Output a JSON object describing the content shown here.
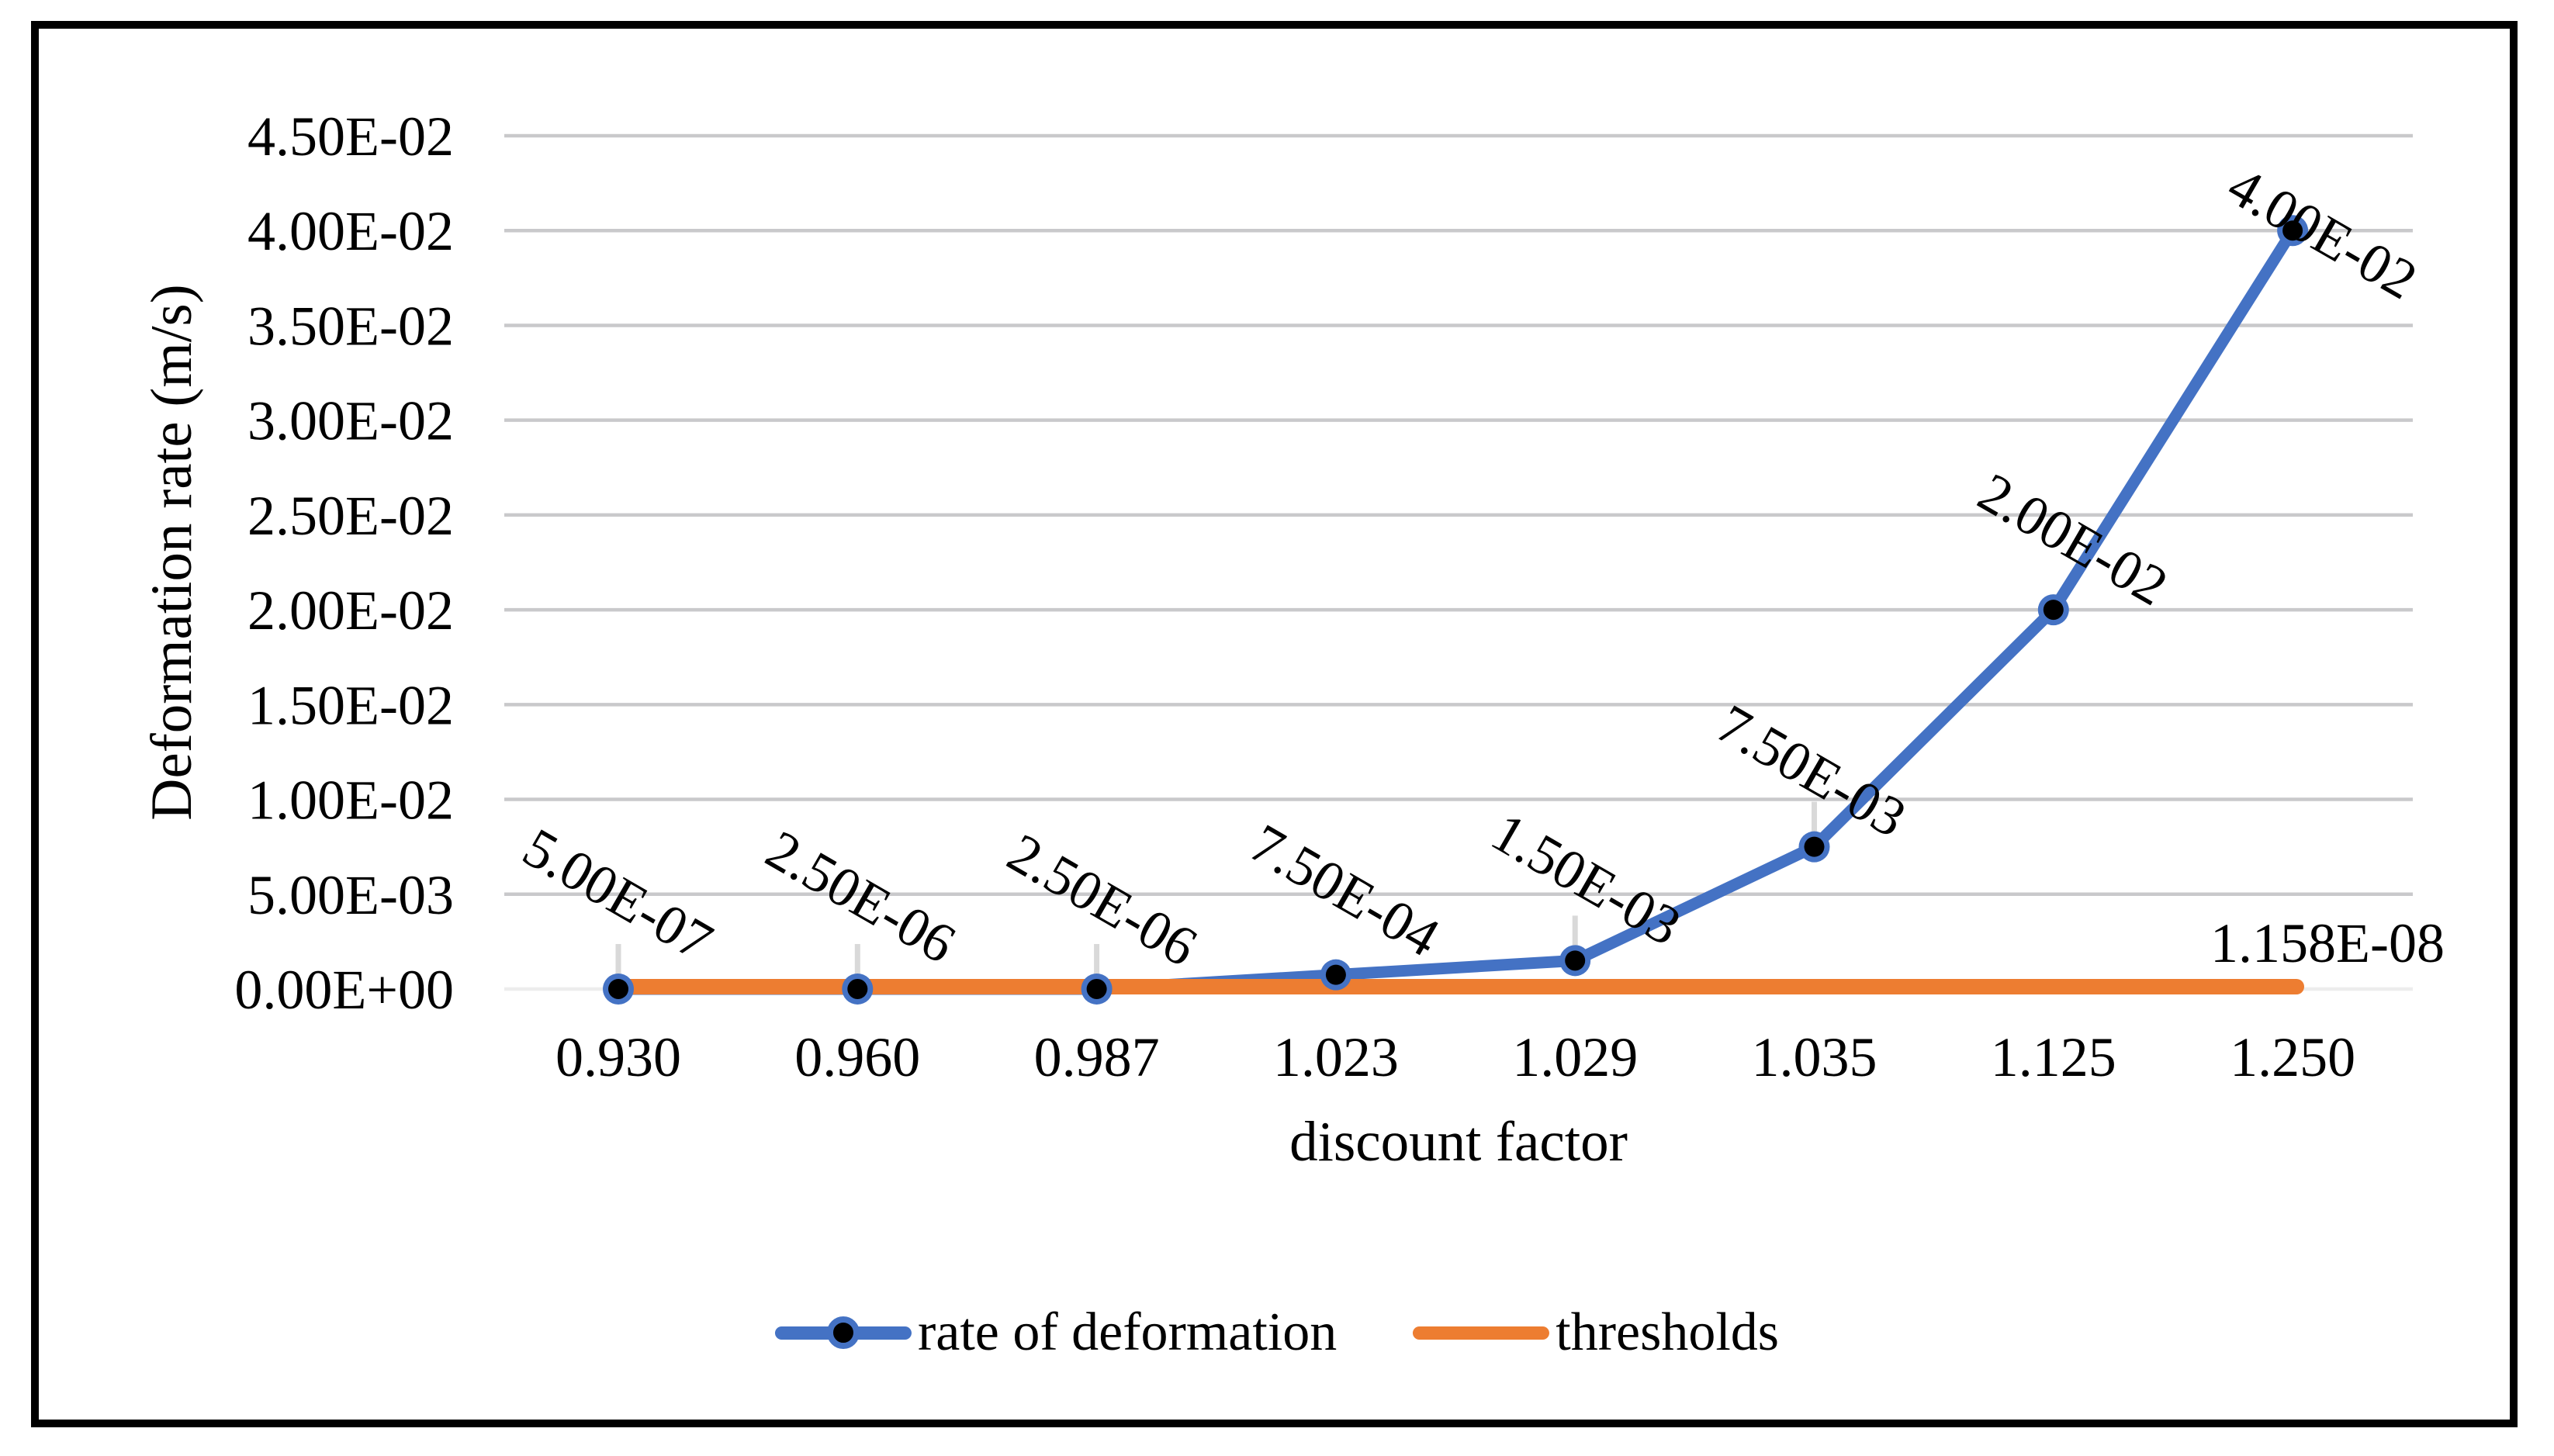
{
  "chart_data": {
    "type": "line",
    "title": "",
    "xlabel": "discount factor",
    "ylabel": "Deformation rate (m/s)",
    "categories": [
      "0.930",
      "0.960",
      "0.987",
      "1.023",
      "1.029",
      "1.035",
      "1.125",
      "1.250"
    ],
    "series": [
      {
        "name": "rate of deformation",
        "type": "line",
        "color": "#4472C4",
        "marker": "black-circle-with-blue-ring",
        "values": [
          5e-07,
          2.5e-06,
          2.5e-06,
          0.00075,
          0.0015,
          0.0075,
          0.02,
          0.04
        ],
        "data_labels": [
          "5.00E-07",
          "2.50E-06",
          "2.50E-06",
          "7.50E-04",
          "1.50E-03",
          "7.50E-03",
          "2.00E-02",
          "4.00E-02"
        ]
      },
      {
        "name": "thresholds",
        "type": "line",
        "color": "#ED7D31",
        "marker": "none",
        "constant_value": 1.158e-08,
        "data_label": "1.158E-08"
      }
    ],
    "y_axis": {
      "min": 0,
      "max": 0.045,
      "step": 0.005,
      "ticks": [
        "0.00E+00",
        "5.00E-03",
        "1.00E-02",
        "1.50E-02",
        "2.00E-02",
        "2.50E-02",
        "3.00E-02",
        "3.50E-02",
        "4.00E-02",
        "4.50E-02"
      ]
    },
    "grid": "horizontal",
    "legend_position": "bottom",
    "data_label_rotation_deg": 30,
    "colors": {
      "series_blue": "#4472C4",
      "series_orange": "#ED7D31",
      "gridline": "#C9C9CB",
      "zero_axis_line": "#EDEDED",
      "leader_tick": "#D9D9D9",
      "text": "#000000",
      "frame": "#000000"
    }
  }
}
